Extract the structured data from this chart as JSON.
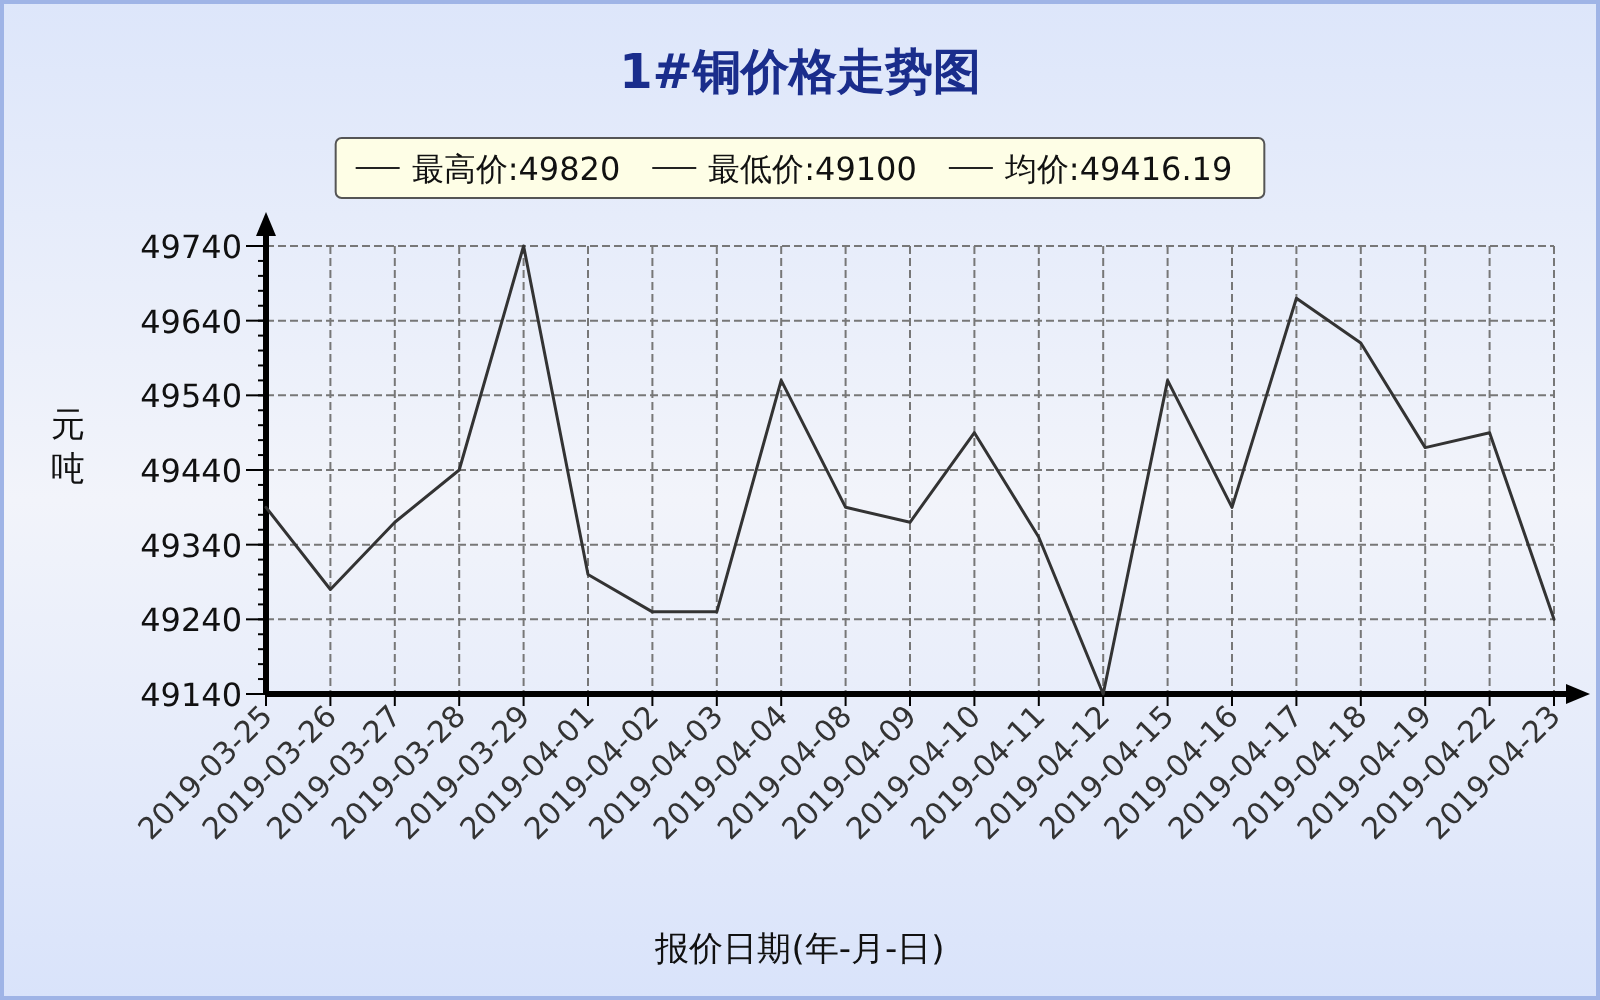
{
  "chart_data": {
    "type": "line",
    "title": "1#铜价格走势图",
    "xlabel": "报价日期(年-月-日)",
    "ylabel": "元吨",
    "categories": [
      "2019-03-25",
      "2019-03-26",
      "2019-03-27",
      "2019-03-28",
      "2019-03-29",
      "2019-04-01",
      "2019-04-02",
      "2019-04-03",
      "2019-04-04",
      "2019-04-08",
      "2019-04-09",
      "2019-04-10",
      "2019-04-11",
      "2019-04-12",
      "2019-04-15",
      "2019-04-16",
      "2019-04-17",
      "2019-04-18",
      "2019-04-19",
      "2019-04-22",
      "2019-04-23"
    ],
    "series": [
      {
        "color": "#333333",
        "values": [
          49390,
          49280,
          49370,
          49440,
          49740,
          49300,
          49250,
          49250,
          49560,
          49390,
          49370,
          49490,
          49350,
          49140,
          49560,
          49390,
          49670,
          49610,
          49470,
          49490,
          49240
        ]
      }
    ],
    "ylim": [
      49140,
      49740
    ],
    "yticks": [
      49140,
      49240,
      49340,
      49440,
      49540,
      49640,
      49740
    ],
    "grid": true,
    "annotations": [
      "最高价:49820",
      "最低价:49100",
      "均价:49416.19"
    ]
  }
}
